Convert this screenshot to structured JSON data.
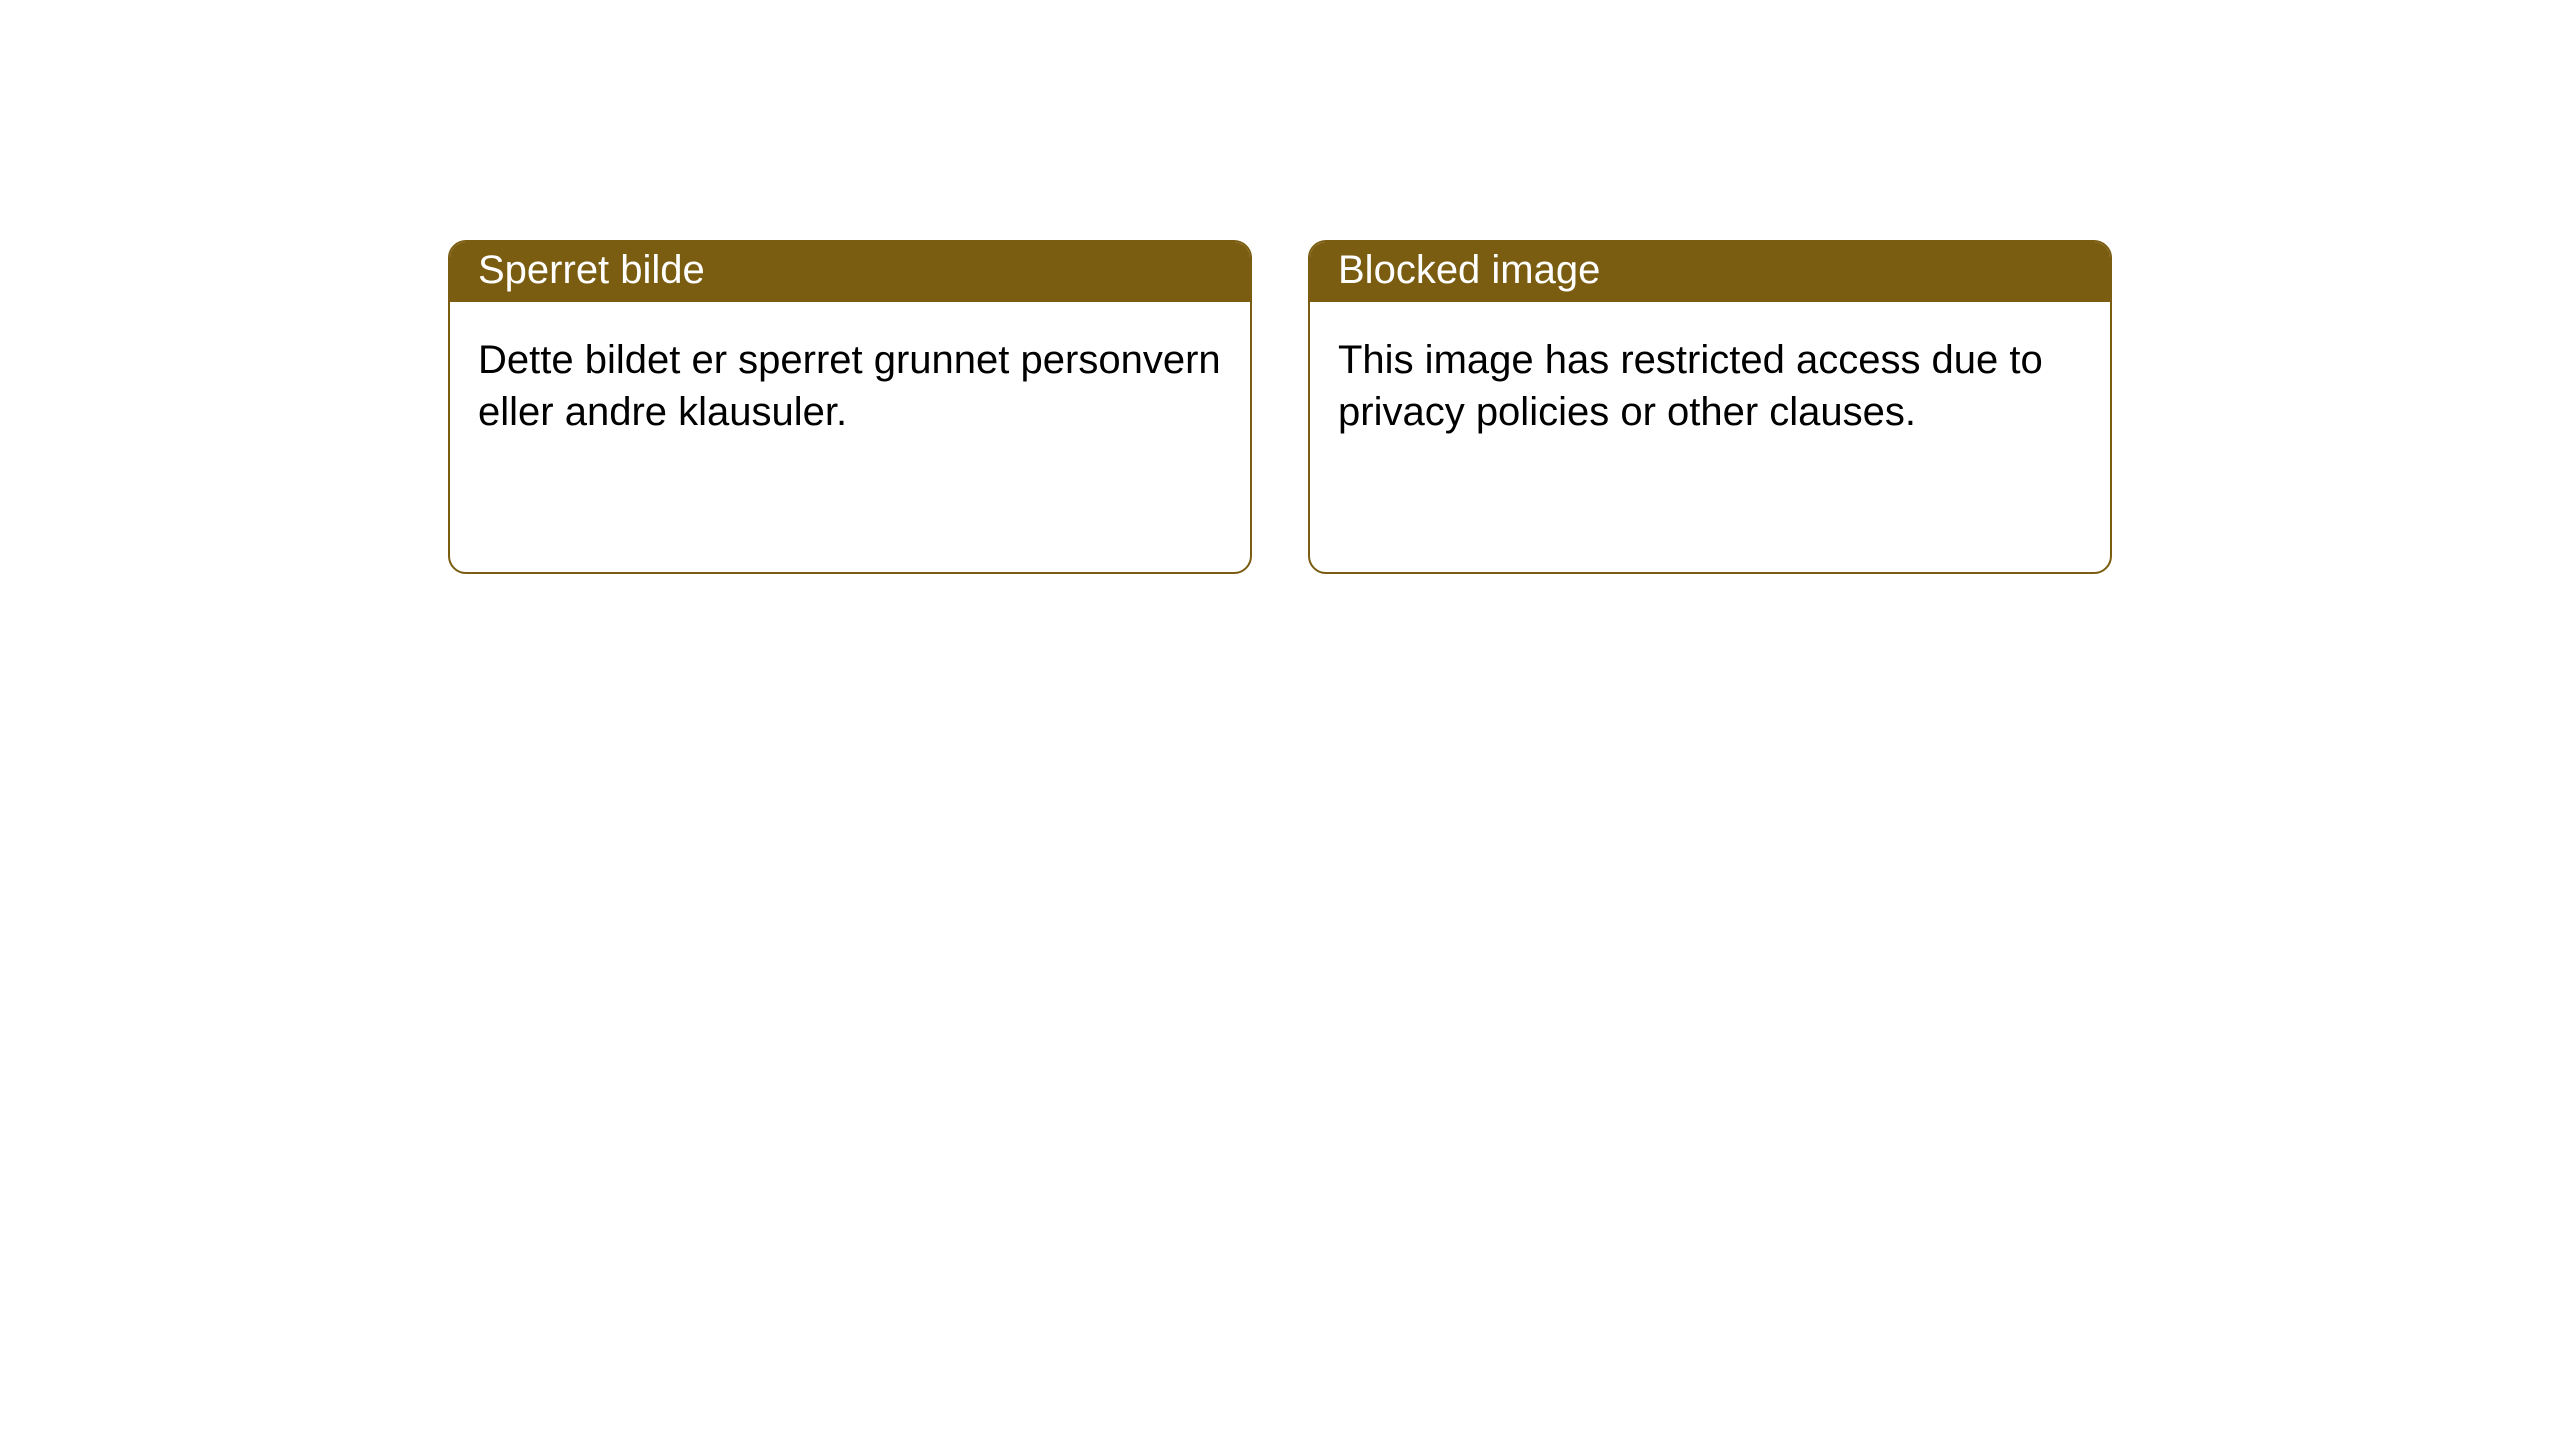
{
  "layout": {
    "background_color": "#ffffff",
    "card_border_color": "#7a5d11",
    "header_background_color": "#7a5d11",
    "header_text_color": "#ffffff",
    "body_text_color": "#000000",
    "card_border_radius": 18,
    "header_fontsize": 40,
    "body_fontsize": 40
  },
  "cards": {
    "norwegian": {
      "title": "Sperret bilde",
      "body": "Dette bildet er sperret grunnet personvern eller andre klausuler."
    },
    "english": {
      "title": "Blocked image",
      "body": "This image has restricted access due to privacy policies or other clauses."
    }
  }
}
